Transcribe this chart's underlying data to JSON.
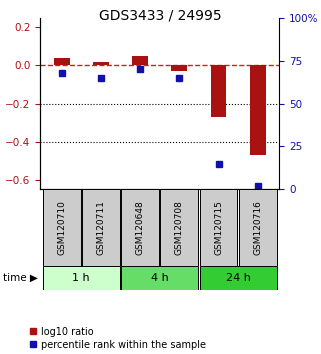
{
  "title": "GDS3433 / 24995",
  "categories": [
    "GSM120710",
    "GSM120711",
    "GSM120648",
    "GSM120708",
    "GSM120715",
    "GSM120716"
  ],
  "groups": [
    {
      "label": "1 h",
      "indices": [
        0,
        1
      ],
      "color": "#ccffcc"
    },
    {
      "label": "4 h",
      "indices": [
        2,
        3
      ],
      "color": "#66dd66"
    },
    {
      "label": "24 h",
      "indices": [
        4,
        5
      ],
      "color": "#33cc33"
    }
  ],
  "log10_ratio": [
    0.04,
    0.02,
    0.05,
    -0.03,
    -0.27,
    -0.47
  ],
  "percentile_rank": [
    68,
    65,
    70,
    65,
    15,
    2
  ],
  "ylim_left": [
    -0.65,
    0.25
  ],
  "ylim_right": [
    0,
    100
  ],
  "bar_color": "#aa1111",
  "dot_color": "#1111aa",
  "zero_line_color": "#cc2222",
  "grid_color": "#000000",
  "label_fontsize": 6.5,
  "title_fontsize": 10,
  "legend_fontsize": 7,
  "time_fontsize": 8.5,
  "group_label_fontsize": 8
}
